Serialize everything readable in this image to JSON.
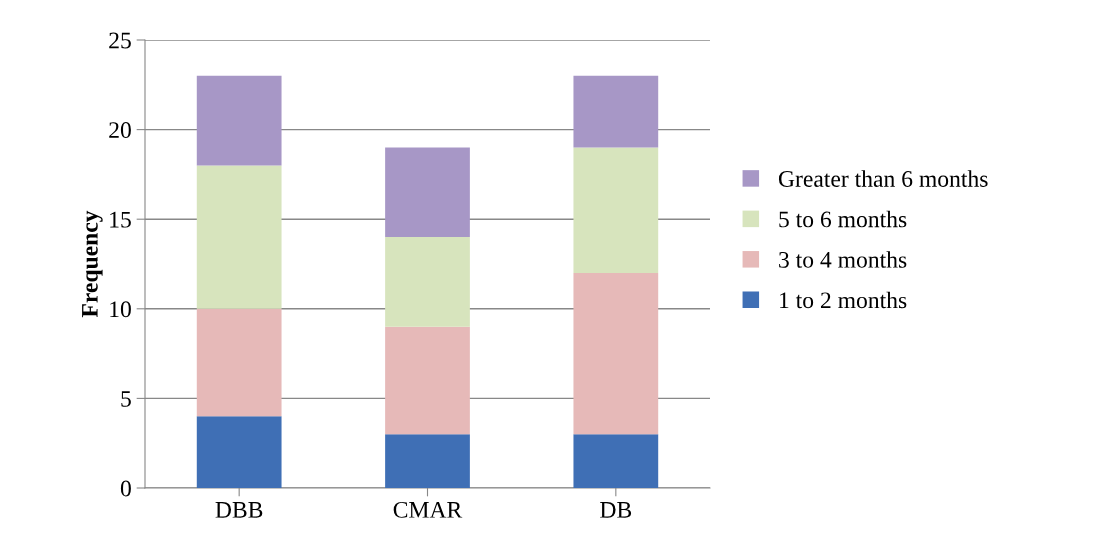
{
  "chart_data": {
    "type": "bar",
    "stacked": true,
    "ylabel": "Frequency",
    "categories": [
      "DBB",
      "CMAR",
      "DB"
    ],
    "series": [
      {
        "name": "1 to 2 months",
        "color": "#3f6fb5",
        "values": [
          4,
          3,
          3
        ]
      },
      {
        "name": "3 to 4 months",
        "color": "#e6b9b8",
        "values": [
          6,
          6,
          9
        ]
      },
      {
        "name": "5 to 6 months",
        "color": "#d7e4bd",
        "values": [
          8,
          5,
          7
        ]
      },
      {
        "name": "Greater than 6 months",
        "color": "#a797c6",
        "values": [
          5,
          5,
          4
        ]
      }
    ],
    "ylim": [
      0,
      25
    ],
    "yticks": [
      0,
      5,
      10,
      15,
      20,
      25
    ],
    "grid": "y",
    "legend": "right"
  }
}
